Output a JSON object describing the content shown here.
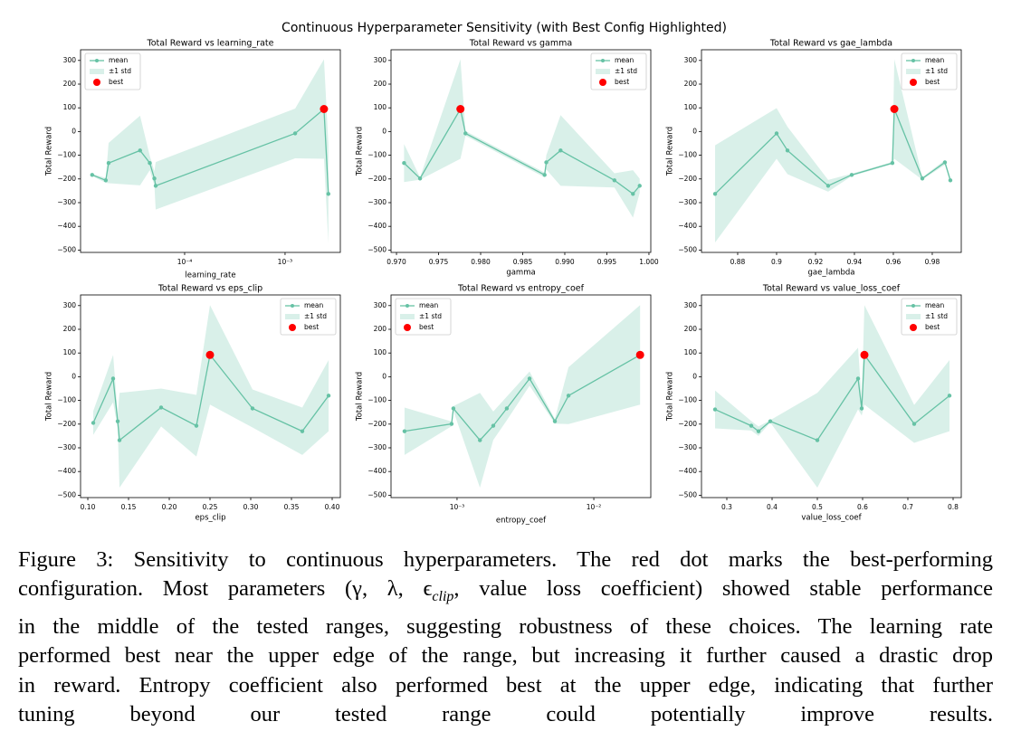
{
  "figure_title": "Continuous Hyperparameter Sensitivity (with Best Config Highlighted)",
  "chart_data": [
    {
      "type": "line",
      "title": "Total Reward vs learning_rate",
      "x_label": "learning_rate",
      "y_label": "Total Reward",
      "x_scale": "log",
      "x": [
        1.2e-05,
        1.64e-05,
        1.75e-05,
        3.6e-05,
        4.5e-05,
        5e-05,
        5.15e-05,
        0.00126,
        0.00244,
        0.0027
      ],
      "series": [
        {
          "name": "mean",
          "color": "#66c2a5",
          "values": [
            -183,
            -206,
            -133,
            -80,
            -133,
            -198,
            -229,
            -8,
            95,
            -263
          ]
        }
      ],
      "band": {
        "name": "±1 std",
        "color": "#d9f0e9",
        "values": [
          5,
          10,
          85,
          147,
          30,
          30,
          100,
          105,
          210,
          210
        ]
      },
      "best": {
        "name": "best",
        "color": "#ff0000",
        "x": 0.00244,
        "y": 95
      },
      "xlim": [
        9.2e-06,
        0.00355
      ],
      "ylim": [
        -510,
        345
      ],
      "xticks": [
        {
          "value": 0.0001,
          "label": "10⁻⁴"
        },
        {
          "value": 0.001,
          "label": "10⁻³"
        }
      ],
      "yticks": [
        {
          "value": -500,
          "label": "−500"
        },
        {
          "value": -400,
          "label": "−400"
        },
        {
          "value": -300,
          "label": "−300"
        },
        {
          "value": -200,
          "label": "−200"
        },
        {
          "value": -100,
          "label": "−100"
        },
        0,
        100,
        200,
        300
      ],
      "legend": "upper left"
    },
    {
      "type": "line",
      "title": "Total Reward vs gamma",
      "x_label": "gamma",
      "y_label": "Total Reward",
      "x_scale": "linear",
      "x": [
        0.9709,
        0.9728,
        0.9776,
        0.9782,
        0.9876,
        0.9878,
        0.9895,
        0.9959,
        0.9981,
        0.9989
      ],
      "series": [
        {
          "name": "mean",
          "color": "#66c2a5",
          "values": [
            -133,
            -198,
            95,
            -8,
            -183,
            -130,
            -80,
            -206,
            -263,
            -229
          ]
        }
      ],
      "band": {
        "name": "±1 std",
        "color": "#d9f0e9",
        "values": [
          80,
          5,
          210,
          10,
          10,
          30,
          149,
          30,
          100,
          30
        ]
      },
      "best": {
        "name": "best",
        "color": "#ff0000",
        "x": 0.9776,
        "y": 95
      },
      "xlim": [
        0.96935,
        1.00022
      ],
      "ylim": [
        -510,
        345
      ],
      "xticks": [
        {
          "value": 0.97,
          "label": "0.970"
        },
        0.975,
        {
          "value": 0.98,
          "label": "0.980"
        },
        0.985,
        {
          "value": 0.99,
          "label": "0.990"
        },
        0.995,
        {
          "value": 1,
          "label": "1.000"
        }
      ],
      "yticks": [
        {
          "value": -500,
          "label": "−500"
        },
        {
          "value": -400,
          "label": "−400"
        },
        {
          "value": -300,
          "label": "−300"
        },
        {
          "value": -200,
          "label": "−200"
        },
        {
          "value": -100,
          "label": "−100"
        },
        0,
        100,
        200,
        300
      ],
      "legend": "upper right"
    },
    {
      "type": "line",
      "title": "Total Reward vs gae_lambda",
      "x_label": "gae_lambda",
      "y_label": "Total Reward",
      "x_scale": "linear",
      "x": [
        0.8684,
        0.9,
        0.9056,
        0.9265,
        0.9386,
        0.9595,
        0.9605,
        0.9749,
        0.9865,
        0.9893
      ],
      "series": [
        {
          "name": "mean",
          "color": "#66c2a5",
          "values": [
            -263,
            -8,
            -80,
            -229,
            -183,
            -133,
            95,
            -198,
            -130,
            -206
          ]
        }
      ],
      "band": {
        "name": "±1 std",
        "color": "#d9f0e9",
        "values": [
          205,
          107,
          100,
          25,
          5,
          5,
          210,
          5,
          10,
          10
        ]
      },
      "best": {
        "name": "best",
        "color": "#ff0000",
        "x": 0.9605,
        "y": 95
      },
      "xlim": [
        0.8614,
        0.9949
      ],
      "ylim": [
        -510,
        345
      ],
      "xticks": [
        0.88,
        0.9,
        0.92,
        0.94,
        0.96,
        0.98
      ],
      "yticks": [
        {
          "value": -500,
          "label": "−500"
        },
        {
          "value": -400,
          "label": "−400"
        },
        {
          "value": -300,
          "label": "−300"
        },
        {
          "value": -200,
          "label": "−200"
        },
        {
          "value": -100,
          "label": "−100"
        },
        0,
        100,
        200,
        300
      ],
      "legend": "upper right"
    },
    {
      "type": "line",
      "title": "Total Reward vs eps_clip",
      "x_label": "eps_clip",
      "y_label": "Total Reward",
      "x_scale": "linear",
      "x": [
        0.1067,
        0.1311,
        0.1367,
        0.1389,
        0.19,
        0.2333,
        0.25,
        0.3022,
        0.3633,
        0.3956
      ],
      "series": [
        {
          "name": "mean",
          "color": "#66c2a5",
          "values": [
            -195,
            -8,
            -188,
            -268,
            -130,
            -207,
            92,
            -134,
            -230,
            -80
          ]
        }
      ],
      "band": {
        "name": "±1 std",
        "color": "#d9f0e9",
        "values": [
          50,
          100,
          30,
          200,
          80,
          130,
          210,
          80,
          100,
          150
        ]
      },
      "best": {
        "name": "best",
        "color": "#ff0000",
        "x": 0.25,
        "y": 92
      },
      "xlim": [
        0.0911,
        0.41
      ],
      "ylim": [
        -510,
        345
      ],
      "xticks": [
        {
          "value": 0.1,
          "label": "0.10"
        },
        0.15,
        {
          "value": 0.2,
          "label": "0.20"
        },
        0.25,
        {
          "value": 0.3,
          "label": "0.30"
        },
        0.35,
        {
          "value": 0.4,
          "label": "0.40"
        }
      ],
      "yticks": [
        {
          "value": -500,
          "label": "−500"
        },
        {
          "value": -400,
          "label": "−400"
        },
        {
          "value": -300,
          "label": "−300"
        },
        {
          "value": -200,
          "label": "−200"
        },
        {
          "value": -100,
          "label": "−100"
        },
        0,
        100,
        200,
        300
      ],
      "legend": "upper right"
    },
    {
      "type": "line",
      "title": "Total Reward vs entropy_coef",
      "x_label": "entropy_coef",
      "y_label": "Total Reward",
      "x_scale": "log",
      "x": [
        0.000413,
        0.000912,
        0.00094,
        0.00147,
        0.00184,
        0.00231,
        0.00339,
        0.00519,
        0.00653,
        0.0218
      ],
      "series": [
        {
          "name": "mean",
          "color": "#66c2a5",
          "values": [
            -230,
            -199,
            -134,
            -268,
            -207,
            -134,
            -8,
            -188,
            -80,
            92
          ]
        }
      ],
      "band": {
        "name": "±1 std",
        "color": "#d9f0e9",
        "values": [
          100,
          10,
          10,
          200,
          60,
          50,
          30,
          10,
          120,
          210
        ]
      },
      "best": {
        "name": "best",
        "color": "#ff0000",
        "x": 0.0218,
        "y": 92
      },
      "xlim": [
        0.000329,
        0.0261
      ],
      "ylim": [
        -510,
        345
      ],
      "xticks": [
        {
          "value": 0.001,
          "label": "10⁻³"
        },
        {
          "value": 0.01,
          "label": "10⁻²"
        }
      ],
      "yticks": [
        {
          "value": -500,
          "label": "−500"
        },
        {
          "value": -400,
          "label": "−400"
        },
        {
          "value": -300,
          "label": "−300"
        },
        {
          "value": -200,
          "label": "−200"
        },
        {
          "value": -100,
          "label": "−100"
        },
        0,
        100,
        200,
        300
      ],
      "legend": "upper left"
    },
    {
      "type": "line",
      "title": "Total Reward vs value_loss_coef",
      "x_label": "value_loss_coef",
      "y_label": "Total Reward",
      "x_scale": "linear",
      "x": [
        0.274,
        0.354,
        0.37,
        0.396,
        0.5,
        0.59,
        0.598,
        0.604,
        0.714,
        0.792
      ],
      "series": [
        {
          "name": "mean",
          "color": "#66c2a5",
          "values": [
            -138,
            -207,
            -230,
            -188,
            -268,
            -8,
            -134,
            92,
            -199,
            -80
          ]
        }
      ],
      "band": {
        "name": "±1 std",
        "color": "#d9f0e9",
        "values": [
          80,
          20,
          20,
          5,
          200,
          130,
          30,
          210,
          80,
          150
        ]
      },
      "best": {
        "name": "best",
        "color": "#ff0000",
        "x": 0.604,
        "y": 92
      },
      "xlim": [
        0.244,
        0.818
      ],
      "ylim": [
        -510,
        345
      ],
      "xticks": [
        0.3,
        0.4,
        0.5,
        0.6,
        0.7,
        0.8
      ],
      "yticks": [
        {
          "value": -500,
          "label": "−500"
        },
        {
          "value": -400,
          "label": "−400"
        },
        {
          "value": -300,
          "label": "−300"
        },
        {
          "value": -200,
          "label": "−200"
        },
        {
          "value": -100,
          "label": "−100"
        },
        0,
        100,
        200,
        300
      ],
      "legend": "upper right"
    }
  ],
  "caption": {
    "lines": [
      "Figure 3: Sensitivity to continuous hyperparameters. The red dot marks the best-performing",
      [
        "configuration. Most parameters (γ, λ, ϵ",
        "clip",
        ", value loss coefficient) showed stable performance"
      ],
      "in the middle of the tested ranges, suggesting robustness of these choices. The learning rate",
      "performed best near the upper edge of the range, but increasing it further caused a drastic drop",
      "in reward. Entropy coefficient also performed best at the upper edge, indicating that further",
      "tuning beyond our tested range could potentially improve results."
    ]
  }
}
